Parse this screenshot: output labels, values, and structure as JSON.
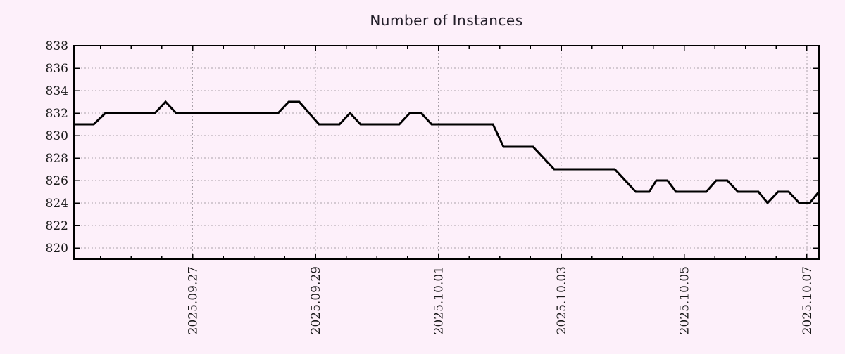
{
  "colors": {
    "background": "#fdf0fa",
    "grid": "#aaa2aa",
    "axis": "#000000",
    "series_line": "#000000",
    "title_text": "#231f2a",
    "tick_text": "#1a1a1a"
  },
  "chart_data": {
    "type": "line",
    "title": "Number of Instances",
    "xlabel": "",
    "ylabel": "",
    "grid": true,
    "legend": "none",
    "ylim": [
      819,
      838
    ],
    "y_ticks": [
      820,
      822,
      824,
      826,
      828,
      830,
      832,
      834,
      836,
      838
    ],
    "xlim_days": [
      -1.932,
      10.195
    ],
    "x_major_days": [
      0,
      2,
      4,
      6,
      8,
      10
    ],
    "x_tick_labels": [
      "2025.09.27",
      "2025.09.29",
      "2025.10.01",
      "2025.10.03",
      "2025.10.05",
      "2025.10.07"
    ],
    "x_minor_step_days": 0.5,
    "x_minor_range_days": [
      -1.5,
      10.0
    ],
    "points": [
      [
        -1.932,
        831
      ],
      [
        -1.61,
        831
      ],
      [
        -1.42,
        832
      ],
      [
        -0.613,
        832
      ],
      [
        -0.441,
        833
      ],
      [
        -0.269,
        832
      ],
      [
        1.392,
        832
      ],
      [
        1.564,
        833
      ],
      [
        1.736,
        833
      ],
      [
        2.057,
        831
      ],
      [
        2.39,
        831
      ],
      [
        2.562,
        832
      ],
      [
        2.733,
        831
      ],
      [
        3.364,
        831
      ],
      [
        3.536,
        832
      ],
      [
        3.719,
        832
      ],
      [
        3.891,
        831
      ],
      [
        4.888,
        831
      ],
      [
        5.06,
        829
      ],
      [
        5.541,
        829
      ],
      [
        5.885,
        827
      ],
      [
        6.871,
        827
      ],
      [
        7.214,
        825
      ],
      [
        7.432,
        825
      ],
      [
        7.547,
        826
      ],
      [
        7.73,
        826
      ],
      [
        7.868,
        825
      ],
      [
        8.361,
        825
      ],
      [
        8.521,
        826
      ],
      [
        8.704,
        826
      ],
      [
        8.876,
        825
      ],
      [
        9.209,
        825
      ],
      [
        9.358,
        824
      ],
      [
        9.53,
        825
      ],
      [
        9.702,
        825
      ],
      [
        9.874,
        824
      ],
      [
        10.046,
        824
      ],
      [
        10.195,
        825
      ]
    ]
  }
}
